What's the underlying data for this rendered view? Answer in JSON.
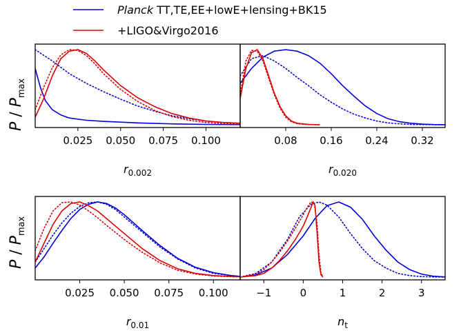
{
  "legend": {
    "entries": [
      {
        "label_italic": "Planck",
        "label_rest": " TT,TE,EE+lowE+lensing+BK15",
        "color": "#0000dd"
      },
      {
        "label_italic": "",
        "label_rest": "+LIGO&Virgo2016",
        "color": "#dd0000"
      }
    ]
  },
  "ylabel": {
    "p": "P",
    "slash": " / ",
    "pmax": "P",
    "sub": "max"
  },
  "chart_data": [
    {
      "type": "line",
      "xlabel": {
        "main": "r",
        "sub": "0.002"
      },
      "xlim": [
        0.0,
        0.12
      ],
      "ylim": [
        0.0,
        1.0
      ],
      "xticks": [
        0.025,
        0.05,
        0.075,
        0.1
      ],
      "xtick_labels": [
        "0.025",
        "0.050",
        "0.075",
        "0.100"
      ],
      "series": [
        {
          "color": "#0000dd",
          "style": "solid",
          "x": [
            0.0,
            0.003,
            0.006,
            0.01,
            0.015,
            0.02,
            0.03,
            0.04,
            0.05,
            0.06,
            0.08,
            0.1,
            0.12
          ],
          "y": [
            0.75,
            0.5,
            0.32,
            0.2,
            0.13,
            0.09,
            0.06,
            0.045,
            0.035,
            0.025,
            0.012,
            0.005,
            0.002
          ]
        },
        {
          "color": "#0000dd",
          "style": "dotted",
          "x": [
            0.0,
            0.01,
            0.02,
            0.03,
            0.04,
            0.05,
            0.06,
            0.07,
            0.08,
            0.09,
            0.1,
            0.11,
            0.12
          ],
          "y": [
            1.0,
            0.85,
            0.68,
            0.55,
            0.44,
            0.34,
            0.25,
            0.18,
            0.12,
            0.08,
            0.05,
            0.03,
            0.02
          ]
        },
        {
          "color": "#dd0000",
          "style": "solid",
          "x": [
            0.0,
            0.005,
            0.01,
            0.015,
            0.02,
            0.025,
            0.03,
            0.035,
            0.04,
            0.05,
            0.06,
            0.07,
            0.08,
            0.09,
            0.1,
            0.11,
            0.12
          ],
          "y": [
            0.1,
            0.35,
            0.65,
            0.88,
            0.98,
            1.0,
            0.95,
            0.85,
            0.73,
            0.52,
            0.36,
            0.24,
            0.15,
            0.09,
            0.05,
            0.03,
            0.02
          ]
        },
        {
          "color": "#dd0000",
          "style": "dotted",
          "x": [
            0.0,
            0.005,
            0.01,
            0.015,
            0.02,
            0.025,
            0.03,
            0.035,
            0.04,
            0.05,
            0.06,
            0.07,
            0.08,
            0.09,
            0.1,
            0.11,
            0.12
          ],
          "y": [
            0.2,
            0.5,
            0.76,
            0.93,
            1.0,
            0.99,
            0.92,
            0.81,
            0.68,
            0.47,
            0.31,
            0.19,
            0.11,
            0.06,
            0.03,
            0.015,
            0.008
          ]
        }
      ]
    },
    {
      "type": "line",
      "xlabel": {
        "main": "r",
        "sub": "0.020"
      },
      "xlim": [
        0.0,
        0.36
      ],
      "ylim": [
        0.0,
        1.0
      ],
      "xticks": [
        0.08,
        0.16,
        0.24,
        0.32
      ],
      "xtick_labels": [
        "0.08",
        "0.16",
        "0.24",
        "0.32"
      ],
      "series": [
        {
          "color": "#0000dd",
          "style": "solid",
          "x": [
            0.0,
            0.02,
            0.04,
            0.06,
            0.08,
            0.1,
            0.12,
            0.14,
            0.16,
            0.18,
            0.2,
            0.22,
            0.24,
            0.26,
            0.28,
            0.3,
            0.32,
            0.34,
            0.36
          ],
          "y": [
            0.55,
            0.75,
            0.9,
            0.98,
            1.0,
            0.98,
            0.92,
            0.82,
            0.68,
            0.52,
            0.38,
            0.25,
            0.15,
            0.08,
            0.04,
            0.02,
            0.008,
            0.003,
            0.001
          ]
        },
        {
          "color": "#0000dd",
          "style": "dotted",
          "x": [
            0.0,
            0.02,
            0.04,
            0.06,
            0.08,
            0.1,
            0.12,
            0.14,
            0.16,
            0.18,
            0.2,
            0.22,
            0.24,
            0.26,
            0.28,
            0.3,
            0.32,
            0.36
          ],
          "y": [
            0.65,
            0.88,
            0.92,
            0.85,
            0.75,
            0.63,
            0.52,
            0.4,
            0.3,
            0.21,
            0.14,
            0.09,
            0.05,
            0.025,
            0.012,
            0.005,
            0.002,
            0.0
          ]
        },
        {
          "color": "#dd0000",
          "style": "solid",
          "x": [
            0.0,
            0.01,
            0.02,
            0.03,
            0.04,
            0.05,
            0.06,
            0.07,
            0.08,
            0.09,
            0.1,
            0.12,
            0.14
          ],
          "y": [
            0.35,
            0.75,
            0.96,
            1.0,
            0.88,
            0.65,
            0.42,
            0.24,
            0.12,
            0.05,
            0.02,
            0.004,
            0.0
          ]
        },
        {
          "color": "#dd0000",
          "style": "dotted",
          "x": [
            0.0,
            0.01,
            0.02,
            0.03,
            0.04,
            0.05,
            0.06,
            0.07,
            0.08,
            0.09,
            0.1,
            0.12,
            0.14
          ],
          "y": [
            0.4,
            0.85,
            0.99,
            0.98,
            0.85,
            0.62,
            0.4,
            0.22,
            0.1,
            0.04,
            0.015,
            0.002,
            0.0
          ]
        }
      ]
    },
    {
      "type": "line",
      "xlabel": {
        "main": "r",
        "sub": "0.01"
      },
      "xlim": [
        0.0,
        0.115
      ],
      "ylim": [
        0.0,
        1.0
      ],
      "xticks": [
        0.025,
        0.05,
        0.075,
        0.1
      ],
      "xtick_labels": [
        "0.025",
        "0.050",
        "0.075",
        "0.100"
      ],
      "series": [
        {
          "color": "#0000dd",
          "style": "solid",
          "x": [
            0.0,
            0.005,
            0.01,
            0.015,
            0.02,
            0.025,
            0.03,
            0.035,
            0.04,
            0.045,
            0.05,
            0.06,
            0.07,
            0.08,
            0.09,
            0.1,
            0.11,
            0.115
          ],
          "y": [
            0.12,
            0.27,
            0.45,
            0.62,
            0.78,
            0.9,
            0.97,
            1.0,
            0.98,
            0.92,
            0.83,
            0.62,
            0.42,
            0.25,
            0.13,
            0.06,
            0.02,
            0.01
          ]
        },
        {
          "color": "#0000dd",
          "style": "dotted",
          "x": [
            0.0,
            0.005,
            0.01,
            0.015,
            0.02,
            0.025,
            0.03,
            0.035,
            0.04,
            0.045,
            0.05,
            0.06,
            0.07,
            0.08,
            0.09,
            0.1,
            0.11,
            0.115
          ],
          "y": [
            0.2,
            0.38,
            0.56,
            0.72,
            0.85,
            0.94,
            0.99,
            1.0,
            0.97,
            0.9,
            0.8,
            0.6,
            0.4,
            0.24,
            0.12,
            0.05,
            0.02,
            0.01
          ]
        },
        {
          "color": "#dd0000",
          "style": "solid",
          "x": [
            0.0,
            0.005,
            0.01,
            0.015,
            0.02,
            0.025,
            0.03,
            0.035,
            0.04,
            0.05,
            0.06,
            0.07,
            0.08,
            0.09,
            0.1,
            0.11,
            0.115
          ],
          "y": [
            0.2,
            0.45,
            0.7,
            0.88,
            0.98,
            1.0,
            0.95,
            0.88,
            0.78,
            0.58,
            0.38,
            0.22,
            0.11,
            0.05,
            0.02,
            0.008,
            0.005
          ]
        },
        {
          "color": "#dd0000",
          "style": "dotted",
          "x": [
            0.0,
            0.005,
            0.01,
            0.015,
            0.02,
            0.025,
            0.03,
            0.035,
            0.04,
            0.05,
            0.06,
            0.07,
            0.08,
            0.09,
            0.1,
            0.11,
            0.115
          ],
          "y": [
            0.35,
            0.65,
            0.88,
            0.99,
            1.0,
            0.96,
            0.88,
            0.79,
            0.69,
            0.5,
            0.33,
            0.19,
            0.09,
            0.04,
            0.015,
            0.005,
            0.003
          ]
        }
      ]
    },
    {
      "type": "line",
      "xlabel": {
        "main": "n",
        "sub": "t"
      },
      "xlim": [
        -1.6,
        3.6
      ],
      "ylim": [
        0.0,
        1.0
      ],
      "xticks": [
        -1,
        0,
        1,
        2,
        3
      ],
      "xtick_labels": [
        "−1",
        "0",
        "1",
        "2",
        "3"
      ],
      "series": [
        {
          "color": "#0000dd",
          "style": "solid",
          "x": [
            -1.6,
            -1.2,
            -0.8,
            -0.4,
            0.0,
            0.3,
            0.6,
            0.9,
            1.2,
            1.5,
            1.8,
            2.1,
            2.4,
            2.7,
            3.0,
            3.3,
            3.6
          ],
          "y": [
            0.0,
            0.03,
            0.12,
            0.3,
            0.55,
            0.78,
            0.95,
            1.0,
            0.93,
            0.77,
            0.55,
            0.36,
            0.2,
            0.1,
            0.04,
            0.012,
            0.003
          ]
        },
        {
          "color": "#0000dd",
          "style": "dotted",
          "x": [
            -1.6,
            -1.2,
            -0.8,
            -0.4,
            -0.1,
            0.2,
            0.4,
            0.6,
            0.9,
            1.2,
            1.5,
            1.8,
            2.1,
            2.4,
            2.7,
            3.0,
            3.3,
            3.6
          ],
          "y": [
            0.0,
            0.05,
            0.2,
            0.5,
            0.8,
            0.97,
            1.0,
            0.96,
            0.8,
            0.58,
            0.38,
            0.22,
            0.12,
            0.05,
            0.02,
            0.007,
            0.002,
            0.0
          ]
        },
        {
          "color": "#dd0000",
          "style": "solid",
          "x": [
            -1.6,
            -1.2,
            -1.0,
            -0.8,
            -0.6,
            -0.4,
            -0.2,
            0.0,
            0.1,
            0.2,
            0.25,
            0.3,
            0.35,
            0.4,
            0.45,
            0.5
          ],
          "y": [
            0.0,
            0.02,
            0.05,
            0.12,
            0.22,
            0.35,
            0.5,
            0.68,
            0.8,
            0.93,
            1.0,
            0.95,
            0.6,
            0.2,
            0.03,
            0.0
          ]
        },
        {
          "color": "#dd0000",
          "style": "dotted",
          "x": [
            -1.6,
            -1.2,
            -1.0,
            -0.8,
            -0.6,
            -0.4,
            -0.2,
            0.0,
            0.1,
            0.2,
            0.28,
            0.35,
            0.4,
            0.45,
            0.5
          ],
          "y": [
            0.0,
            0.04,
            0.1,
            0.2,
            0.33,
            0.48,
            0.65,
            0.83,
            0.93,
            1.0,
            0.98,
            0.72,
            0.3,
            0.06,
            0.0
          ]
        }
      ]
    }
  ]
}
